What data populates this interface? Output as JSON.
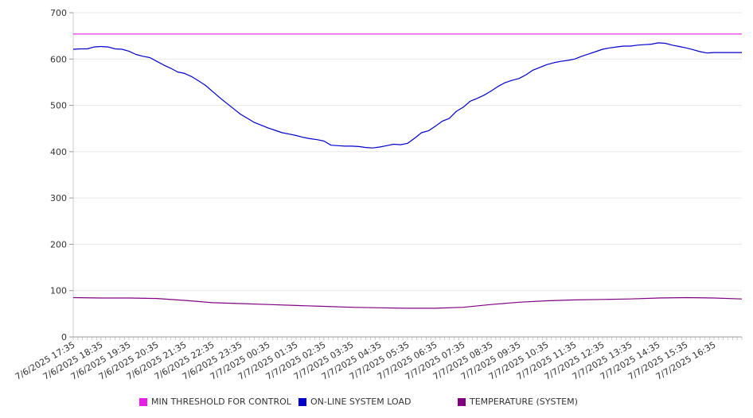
{
  "chart_data": {
    "type": "line",
    "ylim": [
      0,
      700
    ],
    "yticks": [
      0,
      100,
      200,
      300,
      400,
      500,
      600,
      700
    ],
    "grid": true,
    "legend_position": "bottom",
    "x_tick_labels": [
      "7/6/2025 17:35",
      "7/6/2025 18:35",
      "7/6/2025 19:35",
      "7/6/2025 20:35",
      "7/6/2025 21:35",
      "7/6/2025 22:35",
      "7/6/2025 23:35",
      "7/7/2025 00:35",
      "7/7/2025 01:35",
      "7/7/2025 02:35",
      "7/7/2025 03:35",
      "7/7/2025 04:35",
      "7/7/2025 05:35",
      "7/7/2025 06:35",
      "7/7/2025 07:35",
      "7/7/2025 08:35",
      "7/7/2025 09:35",
      "7/7/2025 10:35",
      "7/7/2025 11:35",
      "7/7/2025 12:35",
      "7/7/2025 13:35",
      "7/7/2025 14:35",
      "7/7/2025 15:35",
      "7/7/2025 16:35"
    ],
    "x_hours": [
      0,
      1,
      2,
      3,
      4,
      5,
      6,
      7,
      8,
      9,
      10,
      11,
      12,
      13,
      14,
      15,
      16,
      17,
      18,
      19,
      20,
      21,
      22,
      23
    ],
    "x_range_hours": [
      0,
      24
    ],
    "series": [
      {
        "name": "MIN THRESHOLD FOR CONTROL",
        "color": "#e81ee8",
        "x_hours": [
          0,
          24
        ],
        "values": [
          654,
          654
        ]
      },
      {
        "name": "ON-LINE SYSTEM LOAD",
        "color": "#0000cc",
        "x_hours": [
          0,
          0.25,
          0.5,
          0.75,
          1.0,
          1.25,
          1.5,
          1.75,
          2.0,
          2.25,
          2.5,
          2.75,
          3.0,
          3.25,
          3.5,
          3.75,
          4.0,
          4.25,
          4.5,
          4.75,
          5.0,
          5.25,
          5.5,
          5.75,
          6.0,
          6.25,
          6.5,
          6.75,
          7.0,
          7.25,
          7.5,
          7.75,
          8.0,
          8.25,
          8.5,
          8.75,
          9.0,
          9.25,
          9.5,
          9.75,
          10.0,
          10.25,
          10.5,
          10.75,
          11.0,
          11.25,
          11.5,
          11.75,
          12.0,
          12.25,
          12.5,
          12.75,
          13.0,
          13.25,
          13.5,
          13.75,
          14.0,
          14.25,
          14.5,
          14.75,
          15.0,
          15.25,
          15.5,
          15.75,
          16.0,
          16.25,
          16.5,
          16.75,
          17.0,
          17.25,
          17.5,
          17.75,
          18.0,
          18.25,
          18.5,
          18.75,
          19.0,
          19.25,
          19.5,
          19.75,
          20.0,
          20.25,
          20.5,
          20.75,
          21.0,
          21.25,
          21.5,
          21.75,
          22.0,
          22.25,
          22.5,
          22.75,
          23.0,
          23.25,
          23.5,
          23.75,
          24.0
        ],
        "values": [
          621,
          622,
          622,
          626,
          627,
          626,
          622,
          621,
          617,
          610,
          606,
          603,
          595,
          587,
          580,
          572,
          569,
          562,
          553,
          543,
          530,
          517,
          505,
          493,
          481,
          472,
          463,
          457,
          451,
          446,
          441,
          438,
          435,
          431,
          428,
          426,
          423,
          414,
          413,
          412,
          412,
          411,
          409,
          408,
          410,
          413,
          416,
          415,
          418,
          429,
          441,
          445,
          455,
          466,
          472,
          487,
          496,
          509,
          515,
          522,
          531,
          541,
          549,
          554,
          558,
          566,
          576,
          582,
          588,
          592,
          595,
          597,
          600,
          606,
          611,
          616,
          621,
          624,
          626,
          628,
          628,
          630,
          631,
          632,
          635,
          634,
          630,
          627,
          624,
          620,
          616,
          613,
          614,
          614,
          614,
          614,
          614
        ]
      },
      {
        "name": "TEMPERATURE (SYSTEM)",
        "color": "#800080",
        "x_hours": [
          0,
          1,
          2,
          3,
          4,
          5,
          6,
          7,
          8,
          9,
          10,
          11,
          12,
          13,
          14,
          15,
          16,
          17,
          18,
          19,
          20,
          21,
          22,
          23,
          24
        ],
        "values": [
          85,
          84,
          84,
          83,
          79,
          74,
          72,
          70,
          68,
          66,
          64,
          63,
          62,
          62,
          64,
          70,
          75,
          78,
          80,
          81,
          82,
          84,
          85,
          84,
          82
        ]
      }
    ]
  },
  "legend": {
    "items": [
      {
        "label": "MIN THRESHOLD FOR CONTROL",
        "color": "#e81ee8"
      },
      {
        "label": "ON-LINE SYSTEM LOAD",
        "color": "#0000cc"
      },
      {
        "label": "TEMPERATURE (SYSTEM)",
        "color": "#800080"
      }
    ]
  }
}
